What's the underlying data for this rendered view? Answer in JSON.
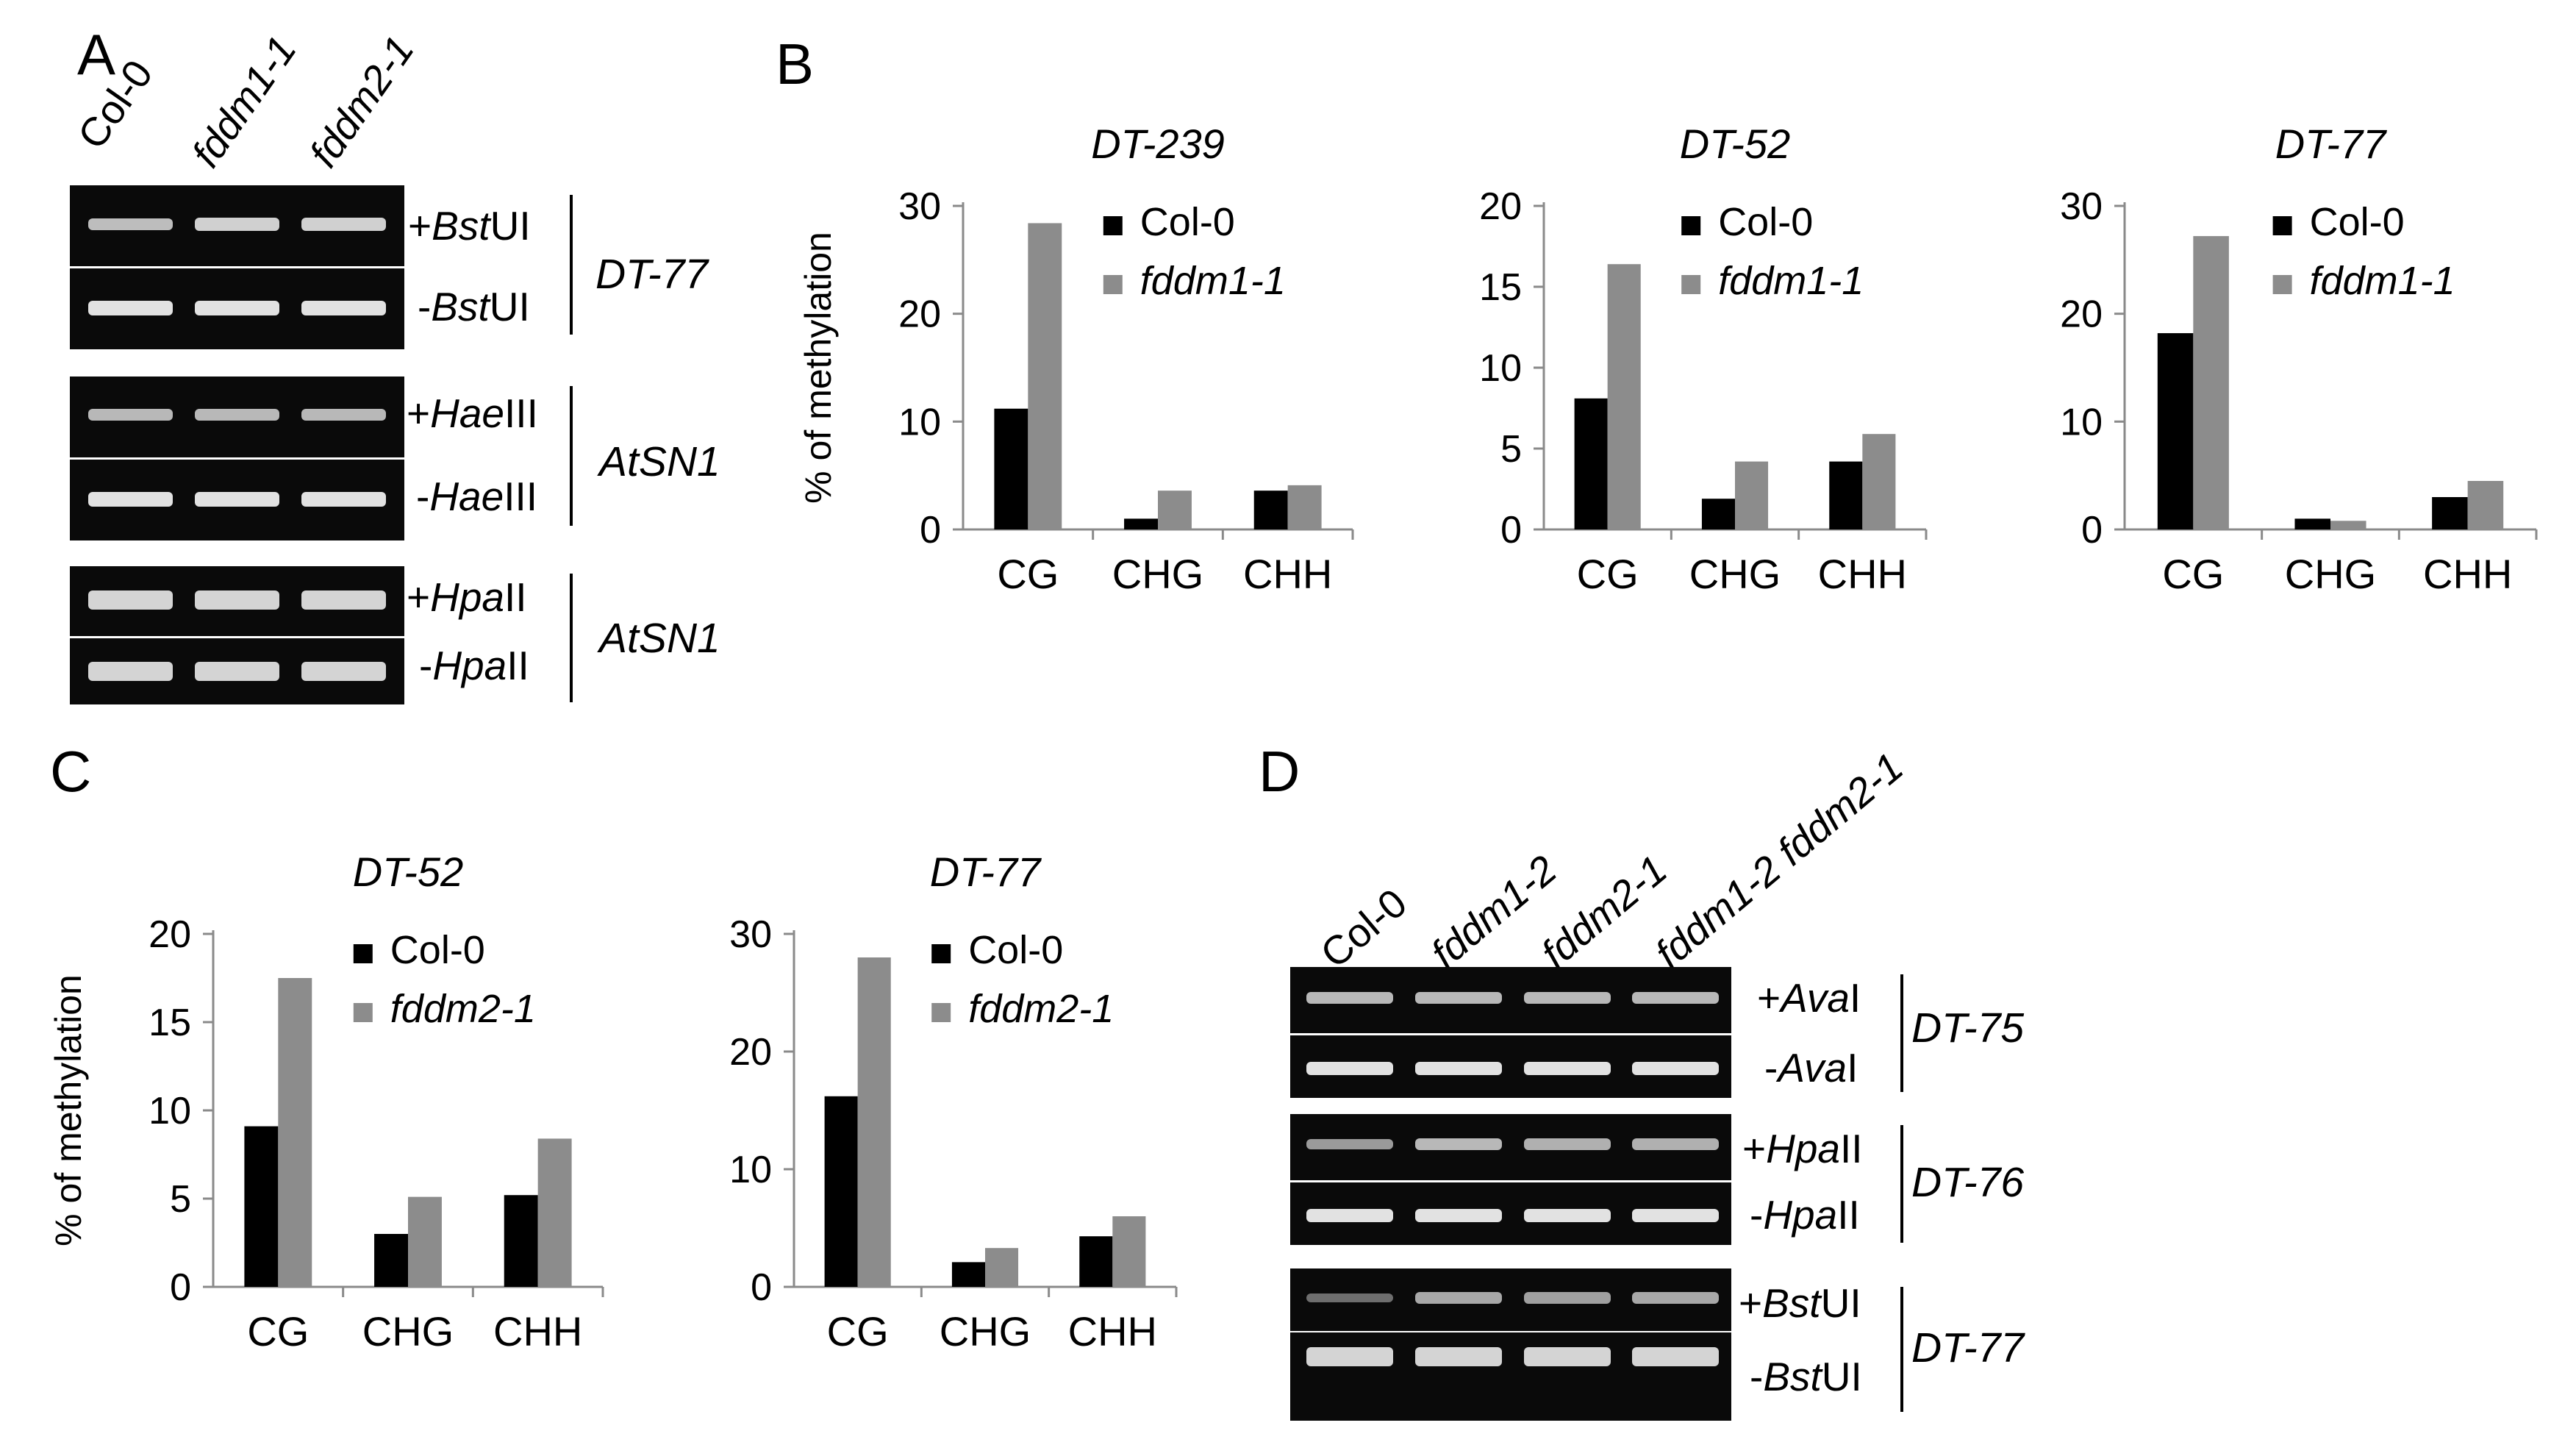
{
  "panel_letters": {
    "a": "A",
    "b": "B",
    "c": "C",
    "d": "D"
  },
  "panel_a": {
    "lanes": [
      "Col-0",
      "fddm1-1",
      "fddm2-1"
    ],
    "groups": [
      {
        "locus": "DT-77",
        "plus_prefix": "+",
        "plus_enzyme_italic": "Bst",
        "plus_enzyme_suffix": "UI",
        "minus_prefix": "-",
        "minus_enzyme_italic": "Bst",
        "minus_enzyme_suffix": "UI"
      },
      {
        "locus": "AtSN1",
        "plus_prefix": "+",
        "plus_enzyme_italic": "Hae",
        "plus_enzyme_suffix": "III",
        "minus_prefix": "-",
        "minus_enzyme_italic": "Hae",
        "minus_enzyme_suffix": "III"
      },
      {
        "locus": "AtSN1",
        "plus_prefix": "+",
        "plus_enzyme_italic": "Hpa",
        "plus_enzyme_suffix": "II",
        "minus_prefix": "-",
        "minus_enzyme_italic": "Hpa",
        "minus_enzyme_suffix": "II"
      }
    ]
  },
  "panel_d": {
    "lanes": [
      "Col-0",
      "fddm1-2",
      "fddm2-1",
      "fddm1-2 fddm2-1"
    ],
    "groups": [
      {
        "locus": "DT-75",
        "plus_prefix": "+",
        "plus_enzyme_italic": "Ava",
        "plus_enzyme_suffix": "I",
        "minus_prefix": "-",
        "minus_enzyme_italic": "Ava",
        "minus_enzyme_suffix": "I"
      },
      {
        "locus": "DT-76",
        "plus_prefix": "+",
        "plus_enzyme_italic": "Hpa",
        "plus_enzyme_suffix": "II",
        "minus_prefix": "-",
        "minus_enzyme_italic": "Hpa",
        "minus_enzyme_suffix": "II"
      },
      {
        "locus": "DT-77",
        "plus_prefix": "+",
        "plus_enzyme_italic": "Bst",
        "plus_enzyme_suffix": "UI",
        "minus_prefix": "-",
        "minus_enzyme_italic": "Bst",
        "minus_enzyme_suffix": "UI"
      }
    ]
  },
  "colors": {
    "series_1": "#000000",
    "series_2": "#8c8c8c",
    "gel_bg": "#0a0a0a",
    "band": "#d8d8d8"
  },
  "chart_data": [
    {
      "type": "bar",
      "panel": "B",
      "title": "DT-239",
      "ylabel": "% of methylation",
      "categories": [
        "CG",
        "CHG",
        "CHH"
      ],
      "ylim": [
        0,
        30
      ],
      "yticks": [
        0,
        10,
        20,
        30
      ],
      "series": [
        {
          "name": "Col-0",
          "values": [
            11.2,
            1.0,
            3.6
          ]
        },
        {
          "name": "fddm1-1",
          "values": [
            28.4,
            3.6,
            4.1
          ]
        }
      ],
      "legend": "top-right",
      "grid": false
    },
    {
      "type": "bar",
      "panel": "B",
      "title": "DT-52",
      "ylabel": "",
      "categories": [
        "CG",
        "CHG",
        "CHH"
      ],
      "ylim": [
        0,
        20
      ],
      "yticks": [
        0,
        5,
        10,
        15,
        20
      ],
      "series": [
        {
          "name": "Col-0",
          "values": [
            8.1,
            1.9,
            4.2
          ]
        },
        {
          "name": "fddm1-1",
          "values": [
            16.4,
            4.2,
            5.9
          ]
        }
      ],
      "legend": "top-right",
      "grid": false
    },
    {
      "type": "bar",
      "panel": "B",
      "title": "DT-77",
      "ylabel": "",
      "categories": [
        "CG",
        "CHG",
        "CHH"
      ],
      "ylim": [
        0,
        30
      ],
      "yticks": [
        0,
        10,
        20,
        30
      ],
      "series": [
        {
          "name": "Col-0",
          "values": [
            18.2,
            1.0,
            3.0
          ]
        },
        {
          "name": "fddm1-1",
          "values": [
            27.2,
            0.8,
            4.5
          ]
        }
      ],
      "legend": "top-right",
      "grid": false
    },
    {
      "type": "bar",
      "panel": "C",
      "title": "DT-52",
      "ylabel": "% of methylation",
      "categories": [
        "CG",
        "CHG",
        "CHH"
      ],
      "ylim": [
        0,
        20
      ],
      "yticks": [
        0,
        5,
        10,
        15,
        20
      ],
      "series": [
        {
          "name": "Col-0",
          "values": [
            9.1,
            3.0,
            5.2
          ]
        },
        {
          "name": "fddm2-1",
          "values": [
            17.5,
            5.1,
            8.4
          ]
        }
      ],
      "legend": "top-right",
      "grid": false
    },
    {
      "type": "bar",
      "panel": "C",
      "title": "DT-77",
      "ylabel": "",
      "categories": [
        "CG",
        "CHG",
        "CHH"
      ],
      "ylim": [
        0,
        30
      ],
      "yticks": [
        0,
        10,
        20,
        30
      ],
      "series": [
        {
          "name": "Col-0",
          "values": [
            16.2,
            2.1,
            4.3
          ]
        },
        {
          "name": "fddm2-1",
          "values": [
            28.0,
            3.3,
            6.0
          ]
        }
      ],
      "legend": "top-right",
      "grid": false
    }
  ]
}
